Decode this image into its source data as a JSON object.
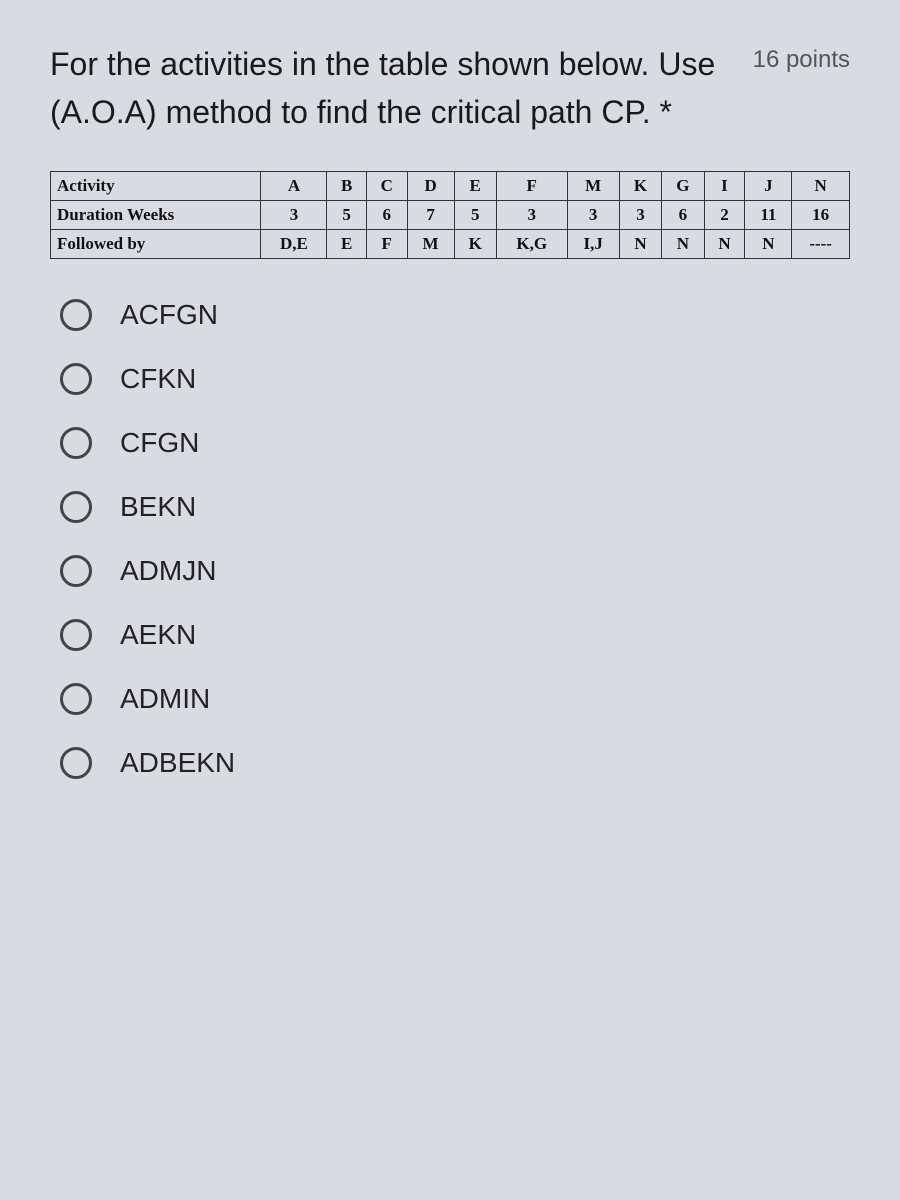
{
  "question": {
    "text": "For the activities in the table shown below. Use (A.O.A) method to find the critical path CP. *",
    "points": "16 points"
  },
  "table": {
    "rows": [
      {
        "label": "Activity",
        "cells": [
          "A",
          "B",
          "C",
          "D",
          "E",
          "F",
          "M",
          "K",
          "G",
          "I",
          "J",
          "N"
        ]
      },
      {
        "label": "Duration Weeks",
        "cells": [
          "3",
          "5",
          "6",
          "7",
          "5",
          "3",
          "3",
          "3",
          "6",
          "2",
          "11",
          "16"
        ]
      },
      {
        "label": "Followed by",
        "cells": [
          "D,E",
          "E",
          "F",
          "M",
          "K",
          "K,G",
          "I,J",
          "N",
          "N",
          "N",
          "N",
          "----"
        ]
      }
    ],
    "label_col_width": "120px",
    "cell_fontsize": "17px",
    "border_color": "#333"
  },
  "options": [
    {
      "label": "ACFGN"
    },
    {
      "label": "CFKN"
    },
    {
      "label": "CFGN"
    },
    {
      "label": "BEKN"
    },
    {
      "label": "ADMJN"
    },
    {
      "label": "AEKN"
    },
    {
      "label": "ADMIN"
    },
    {
      "label": "ADBEKN"
    }
  ],
  "colors": {
    "background": "#d8dce2",
    "text": "#1a1a1a",
    "points": "#555",
    "radio_border": "#444"
  }
}
